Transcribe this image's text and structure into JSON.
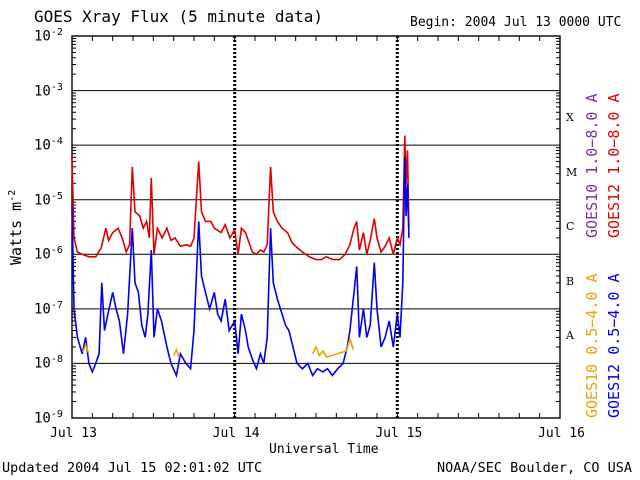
{
  "chart_data": {
    "type": "line",
    "title": "GOES Xray Flux (5 minute data)",
    "begin_label": "Begin:  2004 Jul 13 0000 UTC",
    "ylabel": "Watts m",
    "ylabel_exp": "-2",
    "xlabel": "Universal Time",
    "y_scale": "log",
    "ylim": [
      1e-09,
      0.01
    ],
    "x_unit": "hours since 2004 Jul 13 0000 UTC",
    "xlim": [
      0,
      72
    ],
    "x_ticks": [
      {
        "label": "Jul 13",
        "x": 0
      },
      {
        "label": "Jul 14",
        "x": 24
      },
      {
        "label": "Jul 15",
        "x": 48
      },
      {
        "label": "Jul 16",
        "x": 72
      }
    ],
    "y_ticks": [
      {
        "base": "10",
        "exp": "-2",
        "value": 0.01
      },
      {
        "base": "10",
        "exp": "-3",
        "value": 0.001
      },
      {
        "base": "10",
        "exp": "-4",
        "value": 0.0001
      },
      {
        "base": "10",
        "exp": "-5",
        "value": 1e-05
      },
      {
        "base": "10",
        "exp": "-6",
        "value": 1e-06
      },
      {
        "base": "10",
        "exp": "-7",
        "value": 1e-07
      },
      {
        "base": "10",
        "exp": "-8",
        "value": 1e-08
      },
      {
        "base": "10",
        "exp": "-9",
        "value": 1e-09
      }
    ],
    "flare_classes": [
      {
        "label": "X",
        "value": 0.0003
      },
      {
        "label": "M",
        "value": 3e-05
      },
      {
        "label": "C",
        "value": 3e-06
      },
      {
        "label": "B",
        "value": 3e-07
      },
      {
        "label": "A",
        "value": 3e-08
      }
    ],
    "legend": {
      "left_top": {
        "text": "GOES10 1.0−8.0 A",
        "color": "#7b2fa8"
      },
      "right_top": {
        "text": "GOES12 1.0−8.0 A",
        "color": "#e00000"
      },
      "left_bottom": {
        "text": "GOES10 0.5−4.0 A",
        "color": "#f0a000"
      },
      "right_bottom": {
        "text": "GOES12 0.5−4.0 A",
        "color": "#0000ee"
      }
    },
    "series": [
      {
        "name": "GOES12 1.0−8.0 A",
        "color": "#e00000",
        "points": [
          [
            0,
            6e-05
          ],
          [
            0.3,
            2e-06
          ],
          [
            0.8,
            1.1e-06
          ],
          [
            1.5,
            1e-06
          ],
          [
            2.5,
            9e-07
          ],
          [
            3.5,
            9e-07
          ],
          [
            4.3,
            1.3e-06
          ],
          [
            5,
            3e-06
          ],
          [
            5.4,
            1.8e-06
          ],
          [
            6,
            2.5e-06
          ],
          [
            6.8,
            3e-06
          ],
          [
            7.4,
            2e-06
          ],
          [
            8.0,
            1.1e-06
          ],
          [
            8.5,
            1.5e-06
          ],
          [
            8.9,
            4e-05
          ],
          [
            9.3,
            6e-06
          ],
          [
            10,
            5e-06
          ],
          [
            10.5,
            3e-06
          ],
          [
            11,
            4e-06
          ],
          [
            11.4,
            2e-06
          ],
          [
            11.7,
            2.5e-05
          ],
          [
            12.1,
            1e-06
          ],
          [
            12.6,
            3e-06
          ],
          [
            13.3,
            2e-06
          ],
          [
            14,
            3e-06
          ],
          [
            14.6,
            1.8e-06
          ],
          [
            15.2,
            2e-06
          ],
          [
            16,
            1.4e-06
          ],
          [
            16.8,
            1.5e-06
          ],
          [
            17.5,
            1.4e-06
          ],
          [
            18,
            2e-06
          ],
          [
            18.7,
            5e-05
          ],
          [
            19.1,
            6e-06
          ],
          [
            19.7,
            4e-06
          ],
          [
            20.5,
            4e-06
          ],
          [
            21,
            3e-06
          ],
          [
            22,
            2.5e-06
          ],
          [
            22.6,
            3.5e-06
          ],
          [
            23.3,
            2e-06
          ],
          [
            24,
            2.8e-06
          ],
          [
            24.5,
            1e-06
          ],
          [
            25,
            3e-06
          ],
          [
            25.6,
            2.5e-06
          ],
          [
            26,
            1.8e-06
          ],
          [
            26.6,
            1.1e-06
          ],
          [
            27.2,
            1e-06
          ],
          [
            27.8,
            1.2e-06
          ],
          [
            28.3,
            1.1e-06
          ],
          [
            28.8,
            1.5e-06
          ],
          [
            29.3,
            4e-05
          ],
          [
            29.7,
            6e-06
          ],
          [
            30.3,
            4e-06
          ],
          [
            31,
            3e-06
          ],
          [
            31.8,
            2.5e-06
          ],
          [
            32.5,
            1.6e-06
          ],
          [
            33.3,
            1.3e-06
          ],
          [
            34,
            1.1e-06
          ],
          [
            35,
            9e-07
          ],
          [
            36,
            8e-07
          ],
          [
            36.8,
            8e-07
          ],
          [
            37.5,
            9e-07
          ],
          [
            38.5,
            8e-07
          ],
          [
            39.5,
            8e-07
          ],
          [
            40.3,
            1e-06
          ],
          [
            41,
            1.5e-06
          ],
          [
            41.6,
            3e-06
          ],
          [
            42,
            4e-06
          ],
          [
            42.4,
            1.2e-06
          ],
          [
            43,
            2.5e-06
          ],
          [
            43.5,
            1e-06
          ],
          [
            44,
            1.8e-06
          ],
          [
            44.6,
            4.5e-06
          ],
          [
            45,
            2e-06
          ],
          [
            45.6,
            1.1e-06
          ],
          [
            46.2,
            1.4e-06
          ],
          [
            46.8,
            2e-06
          ],
          [
            47.4,
            1e-06
          ],
          [
            48,
            2e-06
          ],
          [
            48.4,
            1.5e-06
          ],
          [
            48.8,
            3e-06
          ],
          [
            49.1,
            0.00015
          ],
          [
            49.3,
            2e-05
          ],
          [
            49.5,
            8e-05
          ],
          [
            49.7,
            3e-06
          ]
        ]
      },
      {
        "name": "GOES12 0.5−4.0 A",
        "color": "#0000ee",
        "points": [
          [
            0,
            8e-06
          ],
          [
            0.3,
            1e-07
          ],
          [
            0.8,
            3e-08
          ],
          [
            1.5,
            1.5e-08
          ],
          [
            2,
            3e-08
          ],
          [
            2.5,
            1e-08
          ],
          [
            3,
            7e-09
          ],
          [
            3.5,
            1e-08
          ],
          [
            4,
            1.5e-08
          ],
          [
            4.4,
            3e-07
          ],
          [
            4.8,
            4e-08
          ],
          [
            5.3,
            8e-08
          ],
          [
            6,
            2e-07
          ],
          [
            6.5,
            1e-07
          ],
          [
            7,
            6e-08
          ],
          [
            7.6,
            1.5e-08
          ],
          [
            8.2,
            8e-08
          ],
          [
            8.9,
            3e-06
          ],
          [
            9.3,
            3e-07
          ],
          [
            9.8,
            2e-07
          ],
          [
            10.3,
            5e-08
          ],
          [
            10.8,
            3e-08
          ],
          [
            11.2,
            8e-08
          ],
          [
            11.7,
            1.2e-06
          ],
          [
            12.1,
            3e-08
          ],
          [
            12.6,
            1e-07
          ],
          [
            13.2,
            6e-08
          ],
          [
            14,
            2e-08
          ],
          [
            14.6,
            1e-08
          ],
          [
            15.4,
            6e-09
          ],
          [
            16,
            1.5e-08
          ],
          [
            16.8,
            1e-08
          ],
          [
            17.5,
            8e-09
          ],
          [
            18,
            4e-08
          ],
          [
            18.7,
            4e-06
          ],
          [
            19.1,
            4e-07
          ],
          [
            19.7,
            2e-07
          ],
          [
            20.3,
            1e-07
          ],
          [
            21,
            2e-07
          ],
          [
            21.5,
            8e-08
          ],
          [
            22,
            6e-08
          ],
          [
            22.6,
            1.5e-07
          ],
          [
            23.2,
            4e-08
          ],
          [
            24,
            6e-08
          ],
          [
            24.5,
            1.5e-08
          ],
          [
            25,
            8e-08
          ],
          [
            25.6,
            4e-08
          ],
          [
            26,
            2e-08
          ],
          [
            26.6,
            1.2e-08
          ],
          [
            27.2,
            8e-09
          ],
          [
            27.8,
            1.5e-08
          ],
          [
            28.3,
            1e-08
          ],
          [
            28.8,
            3e-08
          ],
          [
            29.3,
            3e-06
          ],
          [
            29.7,
            3e-07
          ],
          [
            30.3,
            1.5e-07
          ],
          [
            31,
            8e-08
          ],
          [
            31.5,
            5e-08
          ],
          [
            32,
            4e-08
          ],
          [
            32.6,
            2e-08
          ],
          [
            33.2,
            1e-08
          ],
          [
            34,
            8e-09
          ],
          [
            34.8,
            1e-08
          ],
          [
            35.5,
            6e-09
          ],
          [
            36.2,
            8e-09
          ],
          [
            37,
            7e-09
          ],
          [
            37.7,
            8e-09
          ],
          [
            38.4,
            6e-09
          ],
          [
            39.2,
            8e-09
          ],
          [
            40,
            1e-08
          ],
          [
            40.6,
            2e-08
          ],
          [
            41,
            4e-08
          ],
          [
            41.6,
            2e-07
          ],
          [
            42,
            6e-07
          ],
          [
            42.4,
            3e-08
          ],
          [
            43,
            1e-07
          ],
          [
            43.5,
            3e-08
          ],
          [
            44,
            5e-08
          ],
          [
            44.6,
            7e-07
          ],
          [
            45,
            1e-07
          ],
          [
            45.6,
            2e-08
          ],
          [
            46.2,
            3e-08
          ],
          [
            46.8,
            6e-08
          ],
          [
            47.4,
            2e-08
          ],
          [
            48,
            8e-08
          ],
          [
            48.4,
            3e-08
          ],
          [
            48.8,
            3e-07
          ],
          [
            49.1,
            6e-05
          ],
          [
            49.3,
            5e-06
          ],
          [
            49.5,
            2e-05
          ],
          [
            49.7,
            2e-06
          ]
        ]
      },
      {
        "name": "GOES10 0.5−4.0 A",
        "color": "#f0a000",
        "points": [
          [
            1.6,
            1.6e-08
          ],
          [
            2.0,
            2.2e-08
          ],
          [
            2.4,
            1.6e-08
          ],
          [
            15.0,
            1.4e-08
          ],
          [
            15.4,
            1.8e-08
          ],
          [
            15.8,
            1.3e-08
          ],
          [
            35.5,
            1.5e-08
          ],
          [
            36.0,
            2e-08
          ],
          [
            36.5,
            1.4e-08
          ],
          [
            37.0,
            1.7e-08
          ],
          [
            37.6,
            1.3e-08
          ],
          [
            40.5,
            1.7e-08
          ],
          [
            41.0,
            2.8e-08
          ],
          [
            41.5,
            1.8e-08
          ]
        ]
      }
    ]
  },
  "footer": {
    "updated": "Updated 2004 Jul 15 02:01:02 UTC",
    "credit": "NOAA/SEC Boulder, CO USA"
  }
}
